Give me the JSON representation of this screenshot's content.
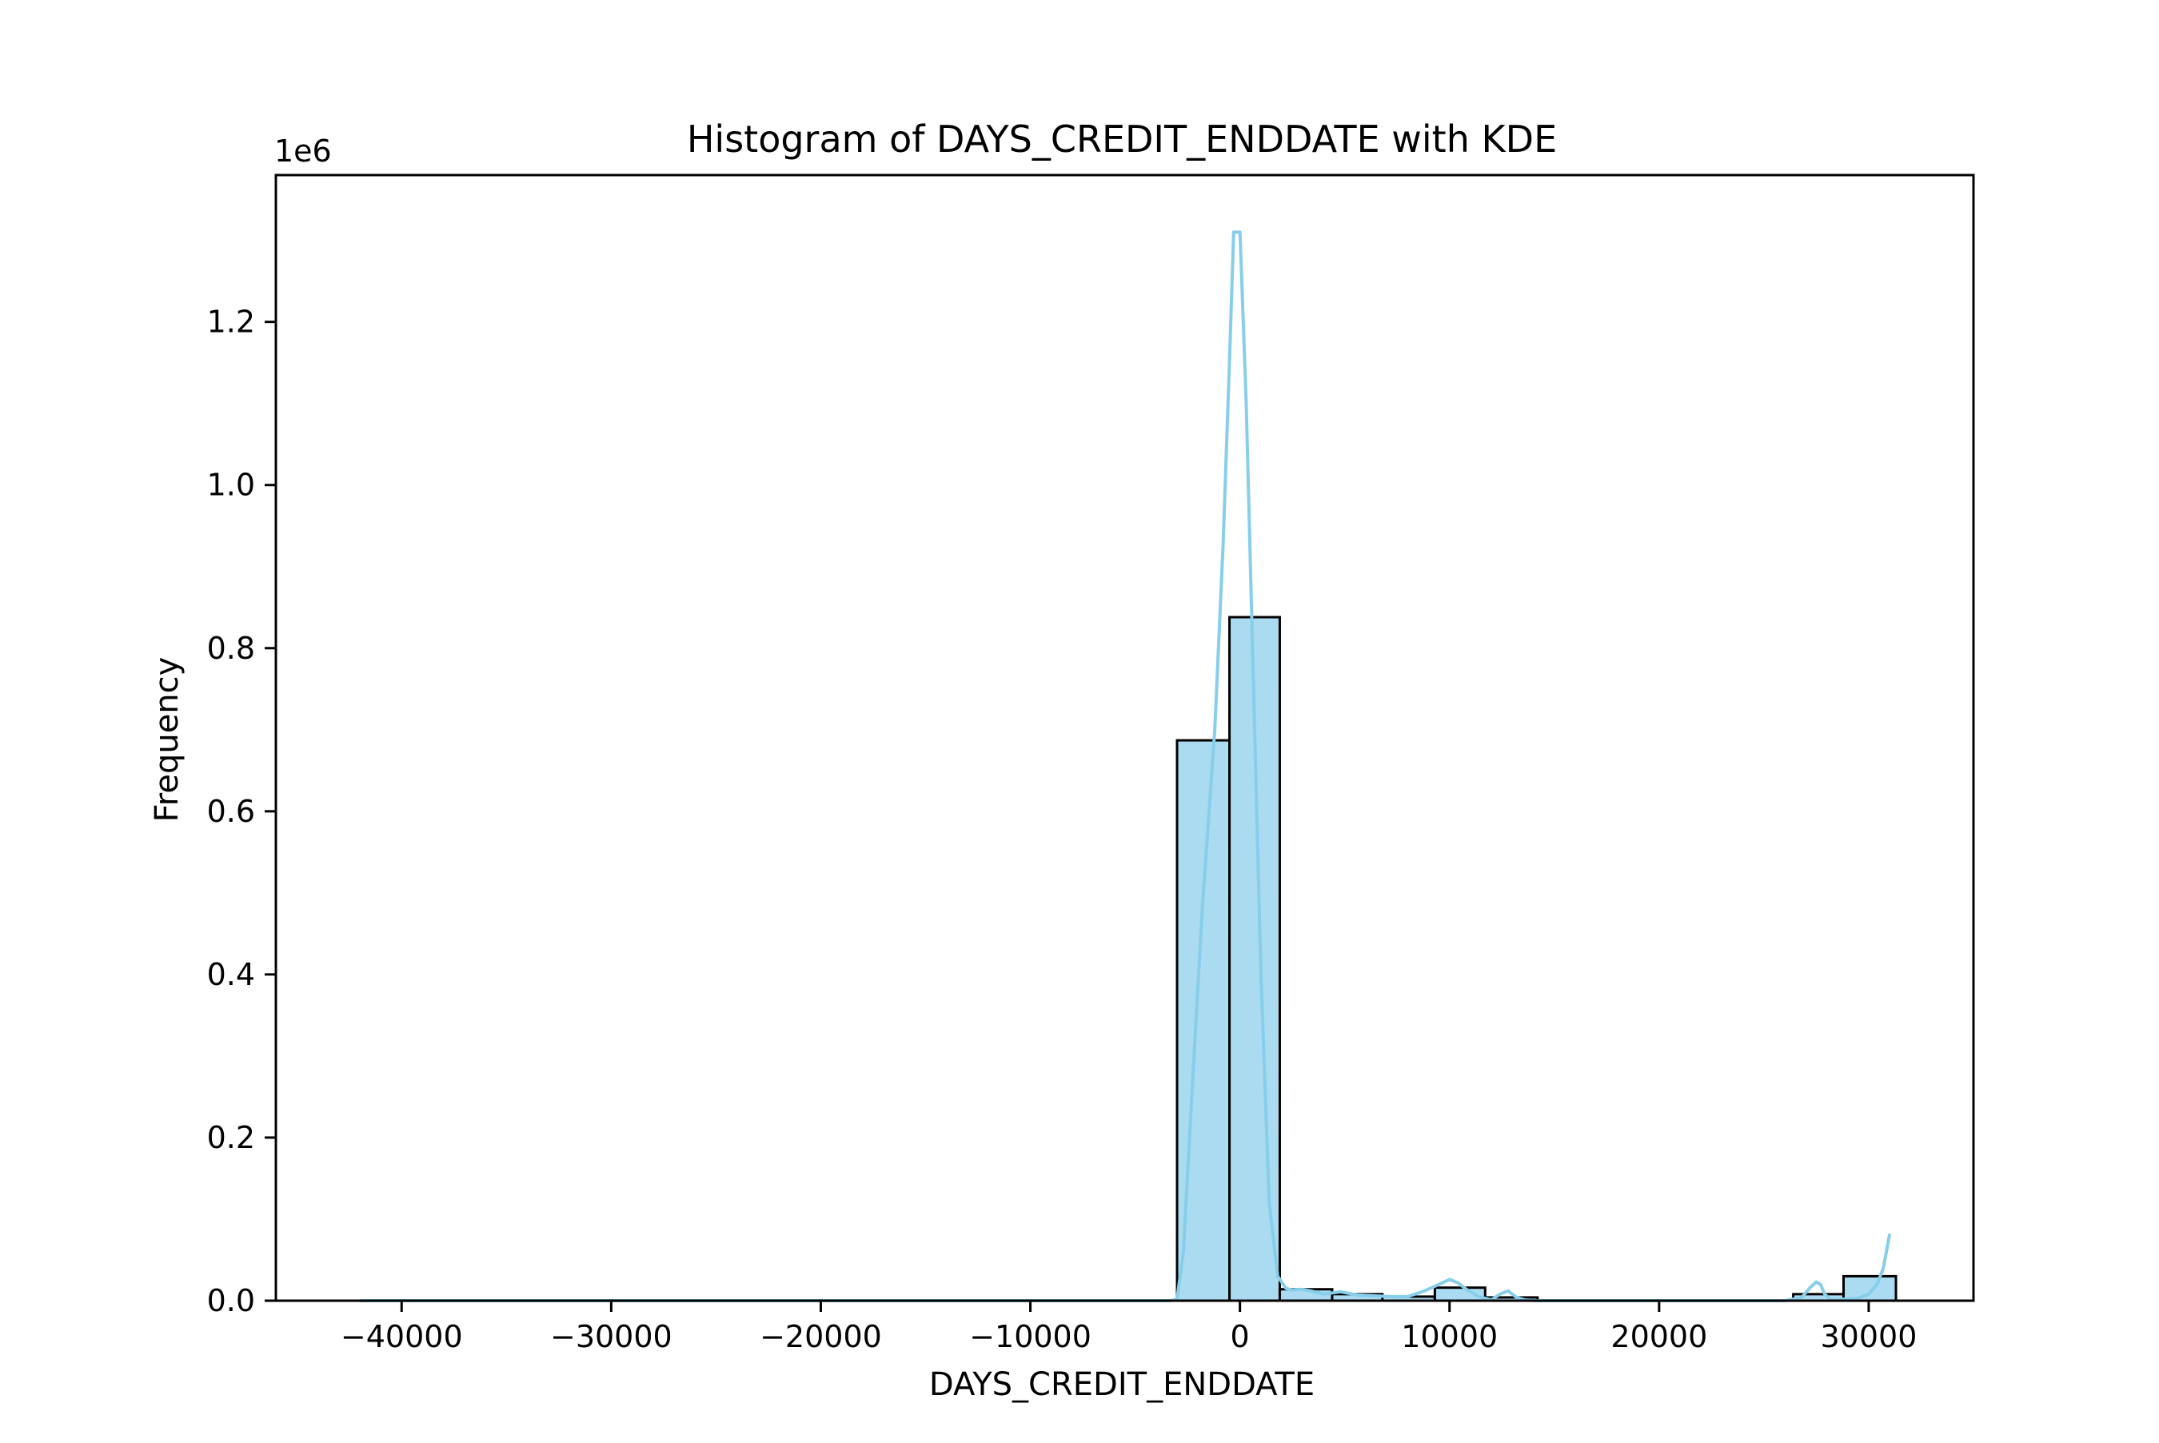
{
  "chart_data": {
    "type": "bar",
    "title": "Histogram of DAYS_CREDIT_ENDDATE with KDE",
    "xlabel": "DAYS_CREDIT_ENDDATE",
    "ylabel": "Frequency",
    "y_offset_label": "1e6",
    "y_scale_factor": 1000000,
    "xlim": [
      -46000,
      35000
    ],
    "ylim": [
      0,
      1380000
    ],
    "x_ticks": [
      -40000,
      -30000,
      -20000,
      -10000,
      0,
      10000,
      20000,
      30000
    ],
    "x_tick_labels": [
      "−40000",
      "−30000",
      "−20000",
      "−10000",
      "0",
      "10000",
      "20000",
      "30000"
    ],
    "y_ticks": [
      0,
      200000,
      400000,
      600000,
      800000,
      1000000,
      1200000
    ],
    "y_tick_labels": [
      "0.0",
      "0.2",
      "0.4",
      "0.6",
      "0.8",
      "1.0",
      "1.2"
    ],
    "grid": false,
    "bins": [
      {
        "x0": -3000,
        "x1": -500,
        "value": 687000
      },
      {
        "x0": -500,
        "x1": 1900,
        "value": 838000
      },
      {
        "x0": 1900,
        "x1": 4400,
        "value": 14000
      },
      {
        "x0": 4400,
        "x1": 6800,
        "value": 8000
      },
      {
        "x0": 6800,
        "x1": 9300,
        "value": 5000
      },
      {
        "x0": 9300,
        "x1": 11700,
        "value": 16000
      },
      {
        "x0": 11700,
        "x1": 14200,
        "value": 4000
      },
      {
        "x0": 26400,
        "x1": 28800,
        "value": 8000
      },
      {
        "x0": 28800,
        "x1": 31300,
        "value": 30000
      }
    ],
    "kde": {
      "x": [
        -42000,
        -35000,
        -25000,
        -15000,
        -8000,
        -4000,
        -3300,
        -3000,
        -2700,
        -2300,
        -1800,
        -1200,
        -800,
        -500,
        -300,
        0,
        300,
        600,
        1000,
        1400,
        1800,
        2200,
        2500,
        2900,
        3400,
        4000,
        4800,
        5600,
        6400,
        7200,
        8000,
        8800,
        9500,
        10000,
        10400,
        10800,
        11400,
        12000,
        12400,
        12800,
        13200,
        13600,
        14200,
        16000,
        20000,
        24000,
        26000,
        26800,
        27200,
        27500,
        27700,
        27900,
        28200,
        28800,
        29500,
        30000,
        30400,
        30700,
        31000
      ],
      "y": [
        0,
        0,
        0,
        0,
        0,
        0,
        0,
        2000,
        60000,
        250000,
        480000,
        700000,
        930000,
        1150000,
        1310000,
        1310000,
        1100000,
        800000,
        400000,
        120000,
        30000,
        15000,
        13000,
        14000,
        12000,
        8000,
        11000,
        7000,
        6000,
        5000,
        5000,
        12000,
        20000,
        26000,
        22000,
        14000,
        5000,
        1000,
        8000,
        12000,
        4000,
        1000,
        0,
        0,
        0,
        0,
        0,
        4000,
        16000,
        23000,
        20000,
        8000,
        1000,
        2000,
        3000,
        8000,
        20000,
        40000,
        82000
      ]
    },
    "colors": {
      "bar_fill": "#aadbf0",
      "bar_edge": "#000000",
      "kde_line": "#87ceeb",
      "axes": "#000000"
    }
  }
}
